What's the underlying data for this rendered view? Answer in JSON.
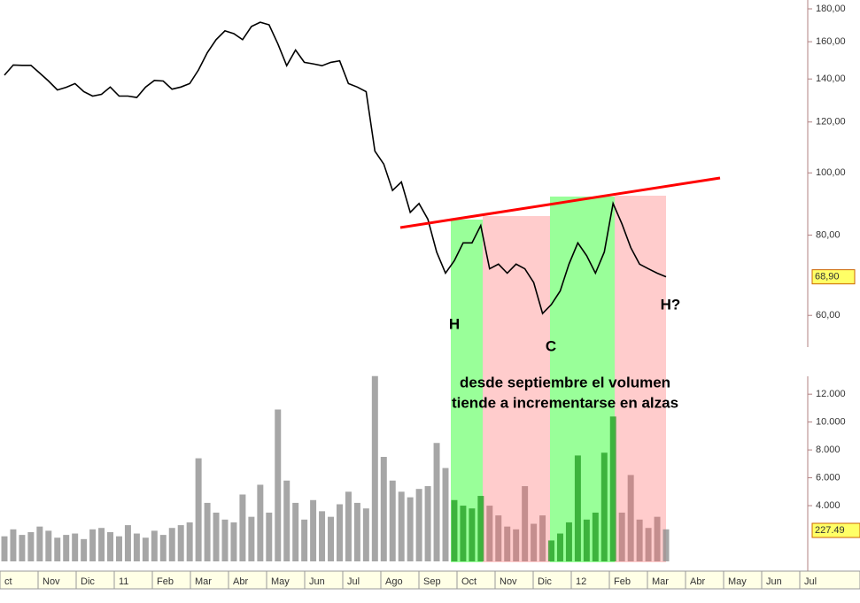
{
  "chart_data": [
    {
      "type": "line",
      "log_scale": true,
      "series": [
        {
          "color": "#000000",
          "values": [
            141.9,
            147.2,
            147,
            147,
            143,
            139,
            134.6,
            135.9,
            137.7,
            133.8,
            131.7,
            132.5,
            136,
            131.7,
            131.7,
            131,
            136,
            139.3,
            139,
            135,
            136,
            137.7,
            144.6,
            153.9,
            161.2,
            166.4,
            164.7,
            161.2,
            169,
            171.6,
            170,
            158.7,
            146.8,
            155.3,
            148.6,
            147.8,
            146.8,
            148.6,
            149.4,
            137.7,
            136,
            133.8,
            108.1,
            103.2,
            93.9,
            96.8,
            86.8,
            89.6,
            84.7,
            75.3,
            69.8,
            73,
            77.8,
            77.8,
            82.8,
            70.9,
            72.1,
            69.8,
            72.1,
            70.9,
            67.5,
            60.4,
            62.4,
            65.5,
            72.1,
            77.8,
            74.3,
            69.8,
            75.3,
            89.6,
            83.3,
            76.5,
            72.1,
            70.9,
            69.8,
            68.9
          ]
        }
      ],
      "ylim": [
        53.9,
        185.8
      ],
      "yticks": [
        {
          "value": 60,
          "label": "60,00"
        },
        {
          "value": 80,
          "label": "80,00"
        },
        {
          "value": 100,
          "label": "100,00"
        },
        {
          "value": 120,
          "label": "120,00"
        },
        {
          "value": 140,
          "label": "140,00"
        },
        {
          "value": 160,
          "label": "160,00"
        },
        {
          "value": 180,
          "label": "180,00"
        }
      ],
      "last_value": {
        "value": 68.9,
        "label": "68,90"
      },
      "annotations": [
        "H",
        "C",
        "H?"
      ]
    },
    {
      "type": "bar",
      "color": "#888888",
      "values": [
        1800,
        2300,
        1900,
        2100,
        2500,
        2200,
        1700,
        1900,
        2000,
        1600,
        2300,
        2400,
        2100,
        1800,
        2600,
        2000,
        1700,
        2200,
        1900,
        2400,
        2600,
        2800,
        7400,
        4200,
        3500,
        3000,
        2800,
        4800,
        3200,
        5500,
        3500,
        10900,
        5800,
        4200,
        3000,
        4400,
        3600,
        3200,
        4100,
        5000,
        4200,
        3800,
        13300,
        7500,
        5800,
        5000,
        4600,
        5200,
        5400,
        8500,
        6700,
        4400,
        4000,
        3800,
        4700,
        4000,
        3300,
        2500,
        2300,
        5400,
        2700,
        3300,
        1500,
        2000,
        2800,
        7600,
        3000,
        3500,
        7800,
        10400,
        3500,
        6200,
        3000,
        2400,
        3200,
        2300
      ],
      "ylim": [
        0,
        13600
      ],
      "yticks": [
        {
          "value": 4000,
          "label": "4.000"
        },
        {
          "value": 6000,
          "label": "6.000"
        },
        {
          "value": 8000,
          "label": "8.000"
        },
        {
          "value": 10000,
          "label": "10.000"
        },
        {
          "value": 12000,
          "label": "12.000"
        }
      ],
      "last_value_text": "227.49",
      "month_labels": [
        "ct",
        "Nov",
        "Dic",
        "11",
        "Feb",
        "Mar",
        "Abr",
        "May",
        "Jun",
        "Jul",
        "Ago",
        "Sep",
        "Oct",
        "Nov",
        "Dic",
        "12",
        "Feb",
        "Mar",
        "Abr",
        "May",
        "Jun",
        "Jul"
      ],
      "note": [
        "desde septiembre el volumen",
        "tiende a incrementarse en alzas"
      ]
    }
  ]
}
